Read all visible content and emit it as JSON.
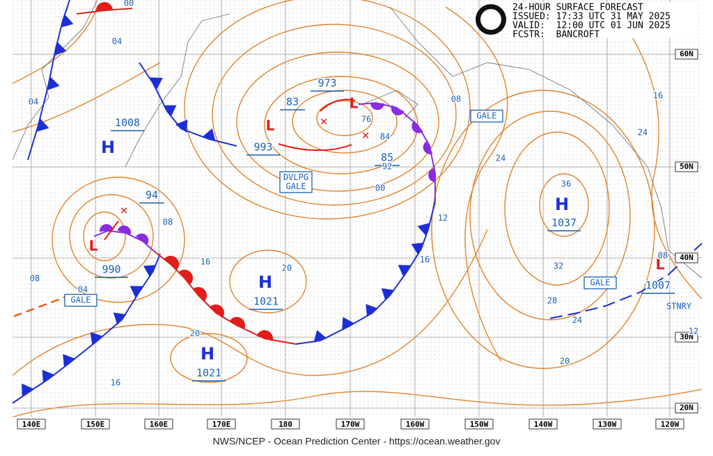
{
  "header": {
    "title": "24-HOUR SURFACE FORECAST",
    "issued": "ISSUED: 17:33 UTC 31 MAY 2025",
    "valid": "VALID:  12:00 UTC 01 JUN 2025",
    "forecaster": "FCSTR:  BANCROFT"
  },
  "footer": "NWS/NCEP - Ocean Prediction Center - https://ocean.weather.gov",
  "longitudes": [
    "140E",
    "150E",
    "160E",
    "170E",
    "180",
    "170W",
    "160W",
    "150W",
    "140W",
    "130W",
    "120W"
  ],
  "latitudes": [
    "60N",
    "50N",
    "40N",
    "30N",
    "20N"
  ],
  "centers": [
    {
      "symbol": "H",
      "pressure": "1008"
    },
    {
      "symbol": "L",
      "pressure": "993"
    },
    {
      "symbol": "L",
      "pressure": "973"
    },
    {
      "symbol": "L",
      "pressure": "990"
    },
    {
      "symbol": "H",
      "pressure": "1021"
    },
    {
      "symbol": "H",
      "pressure": "1021"
    },
    {
      "symbol": "H",
      "pressure": "1037"
    },
    {
      "symbol": "L",
      "pressure": "1007"
    }
  ],
  "secondary_pressures": [
    "83",
    "85",
    "94"
  ],
  "isobar_labels": [
    "00",
    "04",
    "04",
    "76",
    "84",
    "92",
    "00",
    "08",
    "24",
    "16",
    "24",
    "36",
    "32",
    "28",
    "24",
    "20",
    "12",
    "16",
    "08",
    "16",
    "20",
    "20",
    "16",
    "04",
    "08",
    "08",
    "12"
  ],
  "warnings": [
    [
      "GALE"
    ],
    [
      "DVLPG",
      "GALE"
    ],
    [
      "GALE"
    ],
    [
      "GALE"
    ]
  ],
  "front_labels": [
    "STNRY"
  ]
}
